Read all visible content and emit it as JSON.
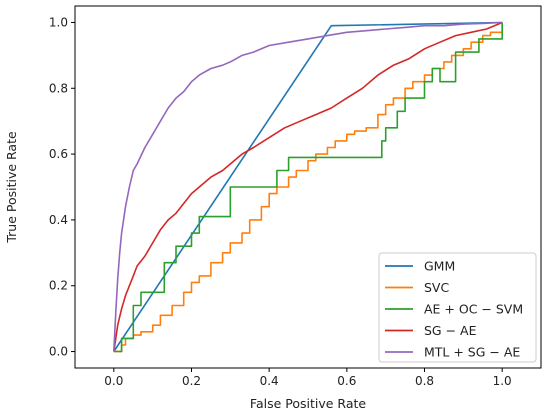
{
  "chart_data": {
    "type": "line",
    "title": "",
    "xlabel": "False Positive Rate",
    "ylabel": "True Positive Rate",
    "xlim": [
      -0.1,
      1.1
    ],
    "ylim": [
      -0.05,
      1.05
    ],
    "xticks": [
      0.0,
      0.2,
      0.4,
      0.6,
      0.8,
      1.0
    ],
    "yticks": [
      0.0,
      0.2,
      0.4,
      0.6,
      0.8,
      1.0
    ],
    "tick_labels_x": [
      "0.0",
      "0.2",
      "0.4",
      "0.6",
      "0.8",
      "1.0"
    ],
    "tick_labels_y": [
      "0.0",
      "0.2",
      "0.4",
      "0.6",
      "0.8",
      "1.0"
    ],
    "grid": false,
    "legend_position": "lower-right",
    "series": [
      {
        "name": "GMM",
        "color": "#1f77b4",
        "step": false,
        "x": [
          0.0,
          0.56,
          1.0
        ],
        "y": [
          0.0,
          0.99,
          1.0
        ]
      },
      {
        "name": "SVC",
        "color": "#ff7f0e",
        "step": true,
        "x": [
          0.0,
          0.02,
          0.03,
          0.05,
          0.07,
          0.1,
          0.12,
          0.15,
          0.18,
          0.2,
          0.22,
          0.25,
          0.28,
          0.3,
          0.33,
          0.35,
          0.38,
          0.4,
          0.42,
          0.45,
          0.47,
          0.5,
          0.52,
          0.55,
          0.57,
          0.6,
          0.62,
          0.65,
          0.68,
          0.7,
          0.72,
          0.75,
          0.77,
          0.8,
          0.82,
          0.85,
          0.87,
          0.9,
          0.92,
          0.95,
          0.97,
          1.0
        ],
        "y": [
          0.0,
          0.02,
          0.04,
          0.05,
          0.06,
          0.08,
          0.11,
          0.14,
          0.18,
          0.21,
          0.23,
          0.27,
          0.3,
          0.33,
          0.36,
          0.4,
          0.44,
          0.48,
          0.5,
          0.53,
          0.55,
          0.58,
          0.6,
          0.62,
          0.64,
          0.66,
          0.67,
          0.68,
          0.72,
          0.75,
          0.77,
          0.8,
          0.82,
          0.84,
          0.86,
          0.88,
          0.9,
          0.92,
          0.94,
          0.96,
          0.97,
          1.0
        ]
      },
      {
        "name": "AE + OC − SVM",
        "color": "#2ca02c",
        "step": true,
        "x": [
          0.0,
          0.02,
          0.05,
          0.07,
          0.13,
          0.16,
          0.2,
          0.22,
          0.3,
          0.42,
          0.45,
          0.55,
          0.69,
          0.7,
          0.73,
          0.75,
          0.77,
          0.8,
          0.82,
          0.84,
          0.88,
          0.91,
          0.94,
          0.97,
          1.0
        ],
        "y": [
          0.0,
          0.04,
          0.14,
          0.18,
          0.27,
          0.32,
          0.36,
          0.41,
          0.5,
          0.55,
          0.59,
          0.59,
          0.64,
          0.68,
          0.73,
          0.77,
          0.77,
          0.82,
          0.86,
          0.82,
          0.91,
          0.91,
          0.95,
          0.95,
          1.0
        ]
      },
      {
        "name": "SG − AE",
        "color": "#d62728",
        "step": false,
        "x": [
          0.0,
          0.005,
          0.01,
          0.02,
          0.03,
          0.04,
          0.05,
          0.06,
          0.08,
          0.1,
          0.12,
          0.14,
          0.16,
          0.18,
          0.2,
          0.22,
          0.25,
          0.28,
          0.3,
          0.33,
          0.36,
          0.4,
          0.44,
          0.48,
          0.52,
          0.56,
          0.6,
          0.64,
          0.68,
          0.72,
          0.76,
          0.8,
          0.84,
          0.88,
          0.92,
          0.96,
          1.0
        ],
        "y": [
          0.0,
          0.04,
          0.08,
          0.13,
          0.17,
          0.2,
          0.23,
          0.26,
          0.29,
          0.33,
          0.37,
          0.4,
          0.42,
          0.45,
          0.48,
          0.5,
          0.53,
          0.55,
          0.57,
          0.6,
          0.62,
          0.65,
          0.68,
          0.7,
          0.72,
          0.74,
          0.77,
          0.8,
          0.84,
          0.87,
          0.89,
          0.92,
          0.94,
          0.96,
          0.97,
          0.98,
          1.0
        ]
      },
      {
        "name": "MTL + SG − AE",
        "color": "#9467bd",
        "step": false,
        "x": [
          0.0,
          0.005,
          0.01,
          0.015,
          0.02,
          0.03,
          0.04,
          0.05,
          0.06,
          0.08,
          0.1,
          0.12,
          0.14,
          0.16,
          0.18,
          0.2,
          0.22,
          0.25,
          0.28,
          0.3,
          0.33,
          0.36,
          0.4,
          0.45,
          0.5,
          0.55,
          0.6,
          0.65,
          0.7,
          0.75,
          0.8,
          0.85,
          0.9,
          0.95,
          1.0
        ],
        "y": [
          0.0,
          0.12,
          0.22,
          0.3,
          0.36,
          0.44,
          0.5,
          0.55,
          0.57,
          0.62,
          0.66,
          0.7,
          0.74,
          0.77,
          0.79,
          0.82,
          0.84,
          0.86,
          0.87,
          0.88,
          0.9,
          0.91,
          0.93,
          0.94,
          0.95,
          0.96,
          0.97,
          0.975,
          0.98,
          0.985,
          0.99,
          0.99,
          0.995,
          0.997,
          1.0
        ]
      }
    ]
  }
}
